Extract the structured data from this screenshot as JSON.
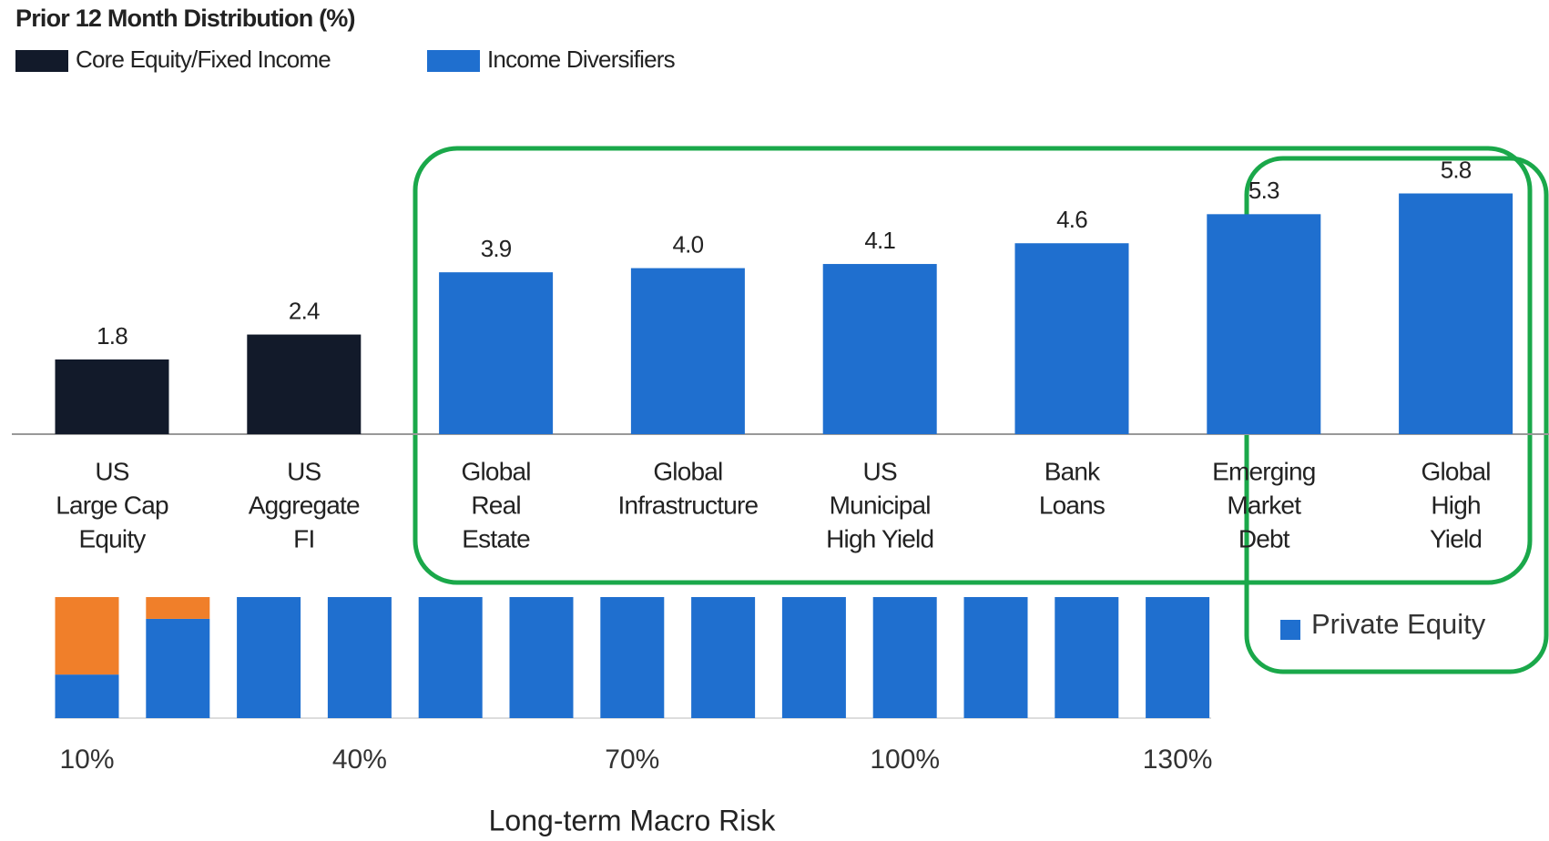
{
  "chart_data": [
    {
      "type": "bar",
      "title": "Prior 12 Month Distribution (%)",
      "categories": [
        [
          "US",
          "Large Cap",
          "Equity"
        ],
        [
          "US",
          "Aggregate",
          "FI"
        ],
        [
          "Global",
          "Real",
          "Estate"
        ],
        [
          "Global",
          "Infrastructure"
        ],
        [
          "US",
          "Municipal",
          "High Yield"
        ],
        [
          "Bank",
          "Loans"
        ],
        [
          "Emerging",
          "Market",
          "Debt"
        ],
        [
          "Global",
          "High",
          "Yield"
        ]
      ],
      "series": [
        {
          "name": "Core Equity/Fixed Income",
          "color": "#121a2a",
          "values": [
            1.8,
            2.4,
            null,
            null,
            null,
            null,
            null,
            null
          ],
          "value_labels": [
            "1.8",
            "2.4",
            null,
            null,
            null,
            null,
            null,
            null
          ]
        },
        {
          "name": "Income Diversifiers",
          "color": "#1f6fcf",
          "values": [
            null,
            null,
            3.9,
            4.0,
            4.1,
            4.6,
            5.3,
            5.8
          ],
          "value_labels": [
            null,
            null,
            "3.9",
            "4.0",
            "4.1",
            "4.6",
            "5.3",
            "5.8"
          ]
        }
      ]
    },
    {
      "type": "stacked_bar",
      "x": [
        10,
        20,
        30,
        40,
        50,
        60,
        70,
        80,
        90,
        100,
        110,
        120,
        130
      ],
      "xlim": [
        10,
        130
      ],
      "xticks": [
        {
          "value": 10,
          "label": "10%"
        },
        {
          "value": 40,
          "label": "40%"
        },
        {
          "value": 70,
          "label": "70%"
        },
        {
          "value": 100,
          "label": "100%"
        },
        {
          "value": 130,
          "label": "130%"
        }
      ],
      "ylim": [
        0,
        100
      ],
      "xlabel": "Long-term Macro Risk",
      "series": [
        {
          "name": "Private Equity",
          "color": "#1f6fcf",
          "values": [
            36,
            82,
            100,
            100,
            100,
            100,
            100,
            100,
            100,
            100,
            100,
            100,
            100
          ]
        },
        {
          "color": "#f07f2a",
          "values": [
            64,
            18,
            0,
            0,
            0,
            0,
            0,
            0,
            0,
            0,
            0,
            0,
            0
          ]
        }
      ]
    }
  ]
}
